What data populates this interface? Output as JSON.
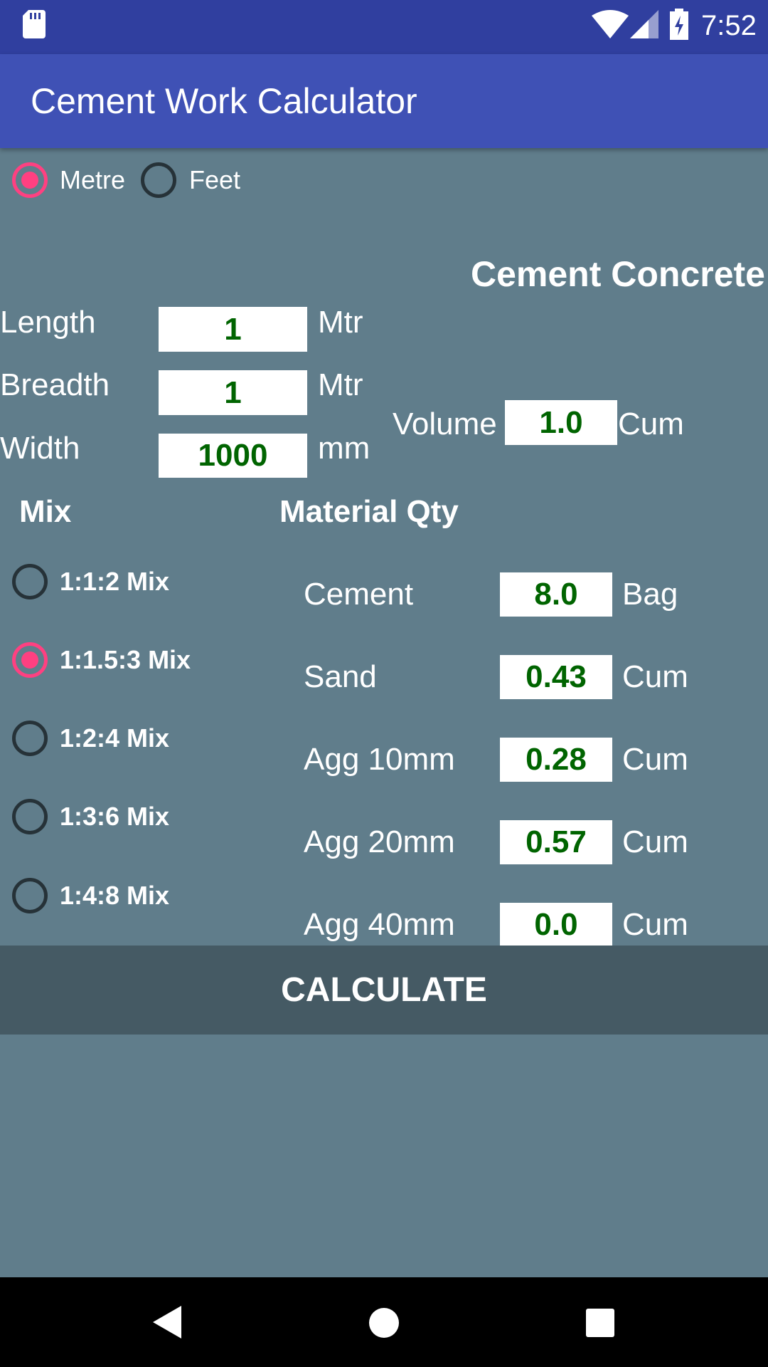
{
  "status_bar": {
    "time": "7:52",
    "icons": [
      "sd-card-icon",
      "wifi-icon",
      "signal-icon",
      "battery-charging-icon"
    ]
  },
  "app_bar": {
    "title": "Cement Work Calculator"
  },
  "units": {
    "options": [
      "Metre",
      "Feet"
    ],
    "selected": "Metre"
  },
  "section_title": "Cement Concrete",
  "dimensions": [
    {
      "label": "Length",
      "value": "1",
      "unit": "Mtr"
    },
    {
      "label": "Breadth",
      "value": "1",
      "unit": "Mtr"
    },
    {
      "label": "Width",
      "value": "1000",
      "unit": "mm"
    }
  ],
  "volume": {
    "label": "Volume",
    "value": "1.0",
    "unit": "Cum"
  },
  "mix": {
    "heading": "Mix",
    "options": [
      "1:1:2 Mix",
      "1:1.5:3 Mix",
      "1:2:4 Mix",
      "1:3:6 Mix",
      "1:4:8 Mix"
    ],
    "selected": "1:1.5:3 Mix"
  },
  "material": {
    "heading": "Material Qty",
    "rows": [
      {
        "label": "Cement",
        "value": "8.0",
        "unit": "Bag"
      },
      {
        "label": "Sand",
        "value": "0.43",
        "unit": "Cum"
      },
      {
        "label": "Agg 10mm",
        "value": "0.28",
        "unit": "Cum"
      },
      {
        "label": "Agg 20mm",
        "value": "0.57",
        "unit": "Cum"
      },
      {
        "label": "Agg 40mm",
        "value": "0.0",
        "unit": "Cum"
      }
    ]
  },
  "calculate_label": "CALCULATE",
  "colors": {
    "accent": "#FF4081",
    "primary": "#3F51B5",
    "background": "#607D8B",
    "value_text": "#006400"
  }
}
